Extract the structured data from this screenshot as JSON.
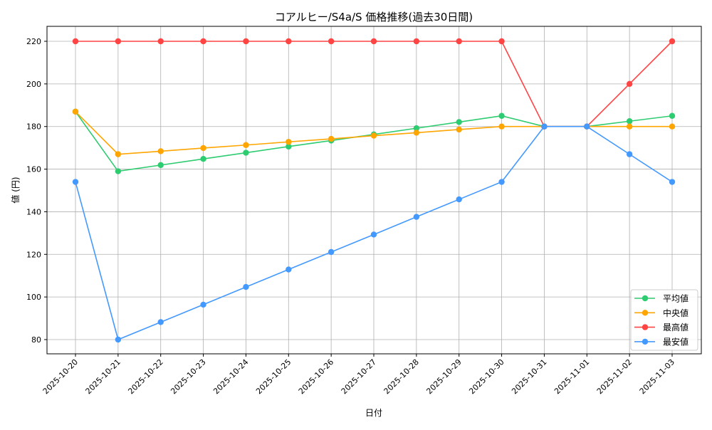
{
  "chart_data": {
    "type": "line",
    "title": "コアルヒー/S4a/S 価格推移(過去30日間)",
    "xlabel": "日付",
    "ylabel": "値 (円)",
    "ylim": [
      73,
      227
    ],
    "yticks": [
      80,
      100,
      120,
      140,
      160,
      180,
      200,
      220
    ],
    "grid": true,
    "legend_position": "lower-right",
    "categories": [
      "2025-10-20",
      "2025-10-21",
      "2025-10-22",
      "2025-10-23",
      "2025-10-24",
      "2025-10-25",
      "2025-10-26",
      "2025-10-27",
      "2025-10-28",
      "2025-10-29",
      "2025-10-30",
      "2025-10-31",
      "2025-11-01",
      "2025-11-02",
      "2025-11-03"
    ],
    "series": [
      {
        "name": "平均値",
        "color": "#2ecc71",
        "values": [
          187,
          159,
          161.9,
          164.8,
          167.7,
          170.6,
          173.4,
          176.3,
          179.2,
          182.1,
          185,
          180,
          180,
          182.5,
          185
        ]
      },
      {
        "name": "中央値",
        "color": "#ffa500",
        "values": [
          187,
          167,
          168.4,
          169.9,
          171.3,
          172.8,
          174.2,
          175.7,
          177.1,
          178.6,
          180,
          180,
          180,
          180,
          180
        ]
      },
      {
        "name": "最高値",
        "color": "#ff4444",
        "values": [
          220,
          220,
          220,
          220,
          220,
          220,
          220,
          220,
          220,
          220,
          220,
          180,
          180,
          200,
          220
        ]
      },
      {
        "name": "最安値",
        "color": "#4499ff",
        "values": [
          154,
          80,
          88.2,
          96.4,
          104.7,
          112.9,
          121.1,
          129.3,
          137.6,
          145.8,
          154,
          180,
          180,
          167,
          154
        ]
      }
    ]
  }
}
